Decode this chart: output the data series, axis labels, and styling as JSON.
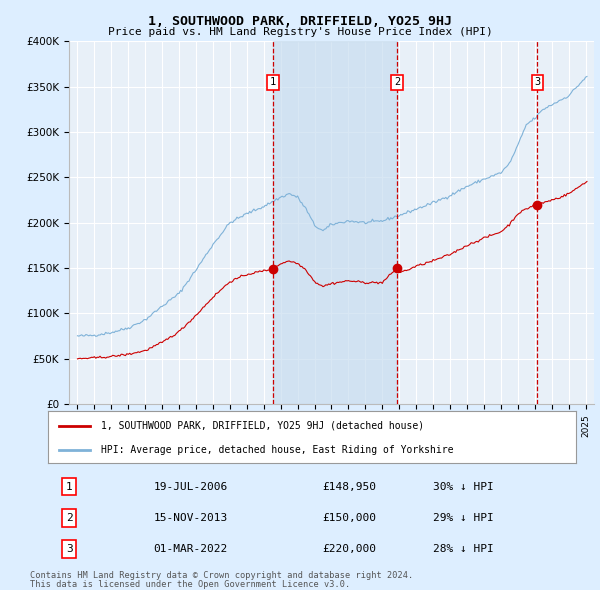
{
  "title": "1, SOUTHWOOD PARK, DRIFFIELD, YO25 9HJ",
  "subtitle": "Price paid vs. HM Land Registry's House Price Index (HPI)",
  "legend_entry1": "1, SOUTHWOOD PARK, DRIFFIELD, YO25 9HJ (detached house)",
  "legend_entry2": "HPI: Average price, detached house, East Riding of Yorkshire",
  "footer1": "Contains HM Land Registry data © Crown copyright and database right 2024.",
  "footer2": "This data is licensed under the Open Government Licence v3.0.",
  "transactions": [
    {
      "num": 1,
      "date": "19-JUL-2006",
      "price": "£148,950",
      "pct": "30% ↓ HPI",
      "year": 2006.54
    },
    {
      "num": 2,
      "date": "15-NOV-2013",
      "price": "£150,000",
      "pct": "29% ↓ HPI",
      "year": 2013.87
    },
    {
      "num": 3,
      "date": "01-MAR-2022",
      "price": "£220,000",
      "pct": "28% ↓ HPI",
      "year": 2022.16
    }
  ],
  "red_line_color": "#cc0000",
  "blue_line_color": "#7fb2d8",
  "background_color": "#ddeeff",
  "plot_bg": "#e8f0f8",
  "grid_color": "#ffffff",
  "vline_color": "#cc0000",
  "shade_color": "#c8ddf0",
  "ylim": [
    0,
    400000
  ],
  "yticks": [
    0,
    50000,
    100000,
    150000,
    200000,
    250000,
    300000,
    350000,
    400000
  ],
  "xlim_start": 1994.5,
  "xlim_end": 2025.5
}
